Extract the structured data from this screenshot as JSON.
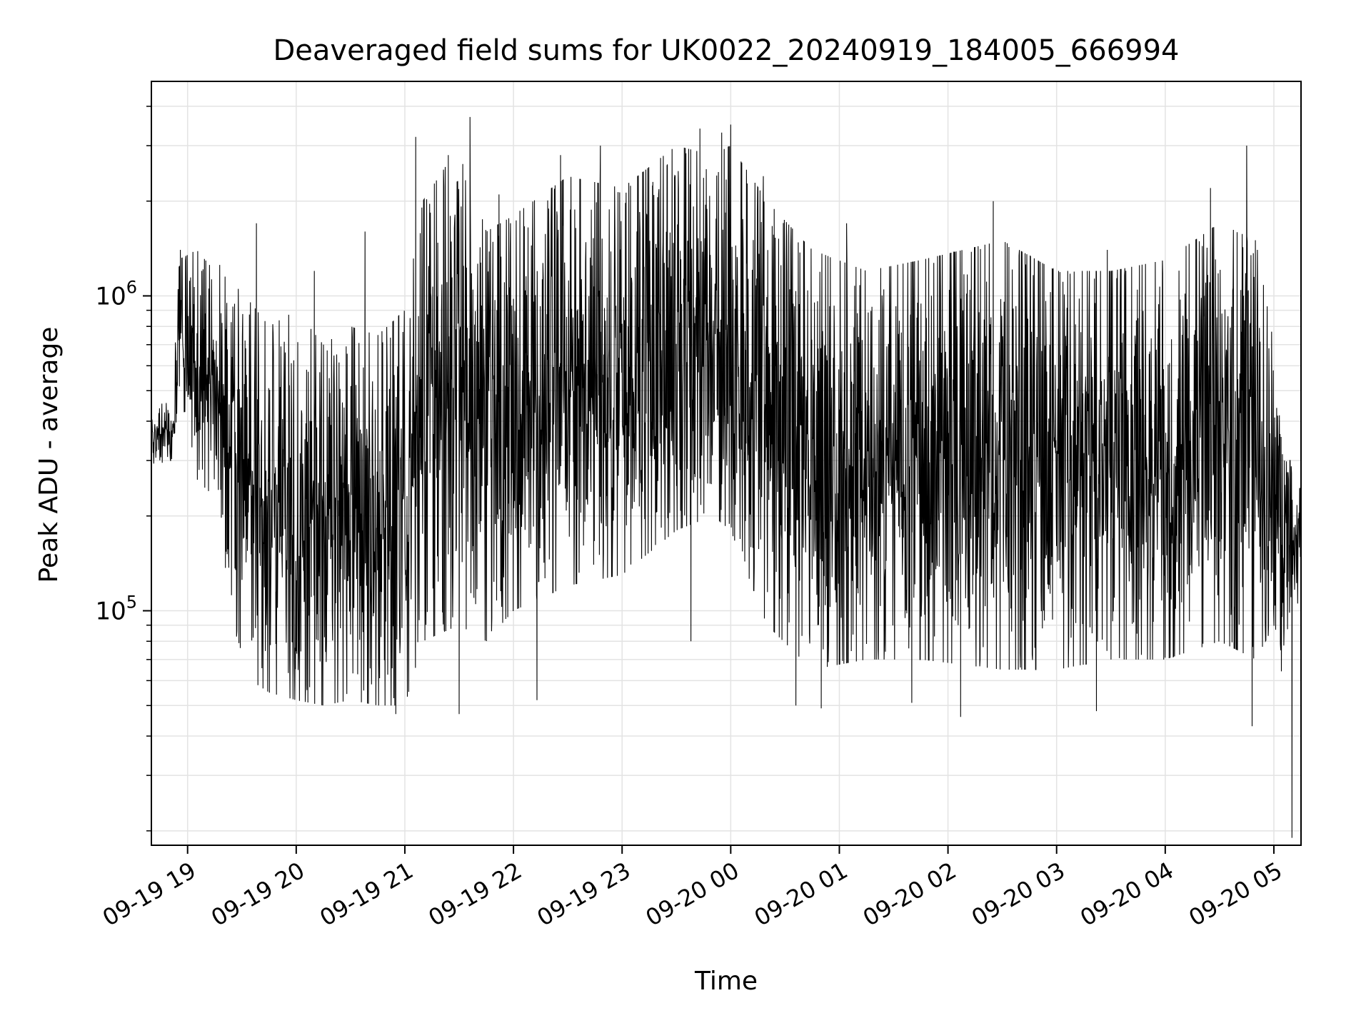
{
  "chart_data": {
    "type": "line",
    "title": "Deaveraged field sums for UK0022_20240919_184005_666994",
    "xlabel": "Time",
    "ylabel": "Peak ADU - average",
    "yscale": "log",
    "ylim": [
      18000,
      4800000
    ],
    "xlim": [
      "2024-09-19 18:40",
      "2024-09-20 05:15"
    ],
    "grid": true,
    "line_color": "#000000",
    "grid_color": "#e3e3e3",
    "x_ticks": [
      {
        "t": "2024-09-19 19:00",
        "label": "09-19 19"
      },
      {
        "t": "2024-09-19 20:00",
        "label": "09-19 20"
      },
      {
        "t": "2024-09-19 21:00",
        "label": "09-19 21"
      },
      {
        "t": "2024-09-19 22:00",
        "label": "09-19 22"
      },
      {
        "t": "2024-09-19 23:00",
        "label": "09-19 23"
      },
      {
        "t": "2024-09-20 00:00",
        "label": "09-20 00"
      },
      {
        "t": "2024-09-20 01:00",
        "label": "09-20 01"
      },
      {
        "t": "2024-09-20 02:00",
        "label": "09-20 02"
      },
      {
        "t": "2024-09-20 03:00",
        "label": "09-20 03"
      },
      {
        "t": "2024-09-20 04:00",
        "label": "09-20 04"
      },
      {
        "t": "2024-09-20 05:00",
        "label": "09-20 05"
      }
    ],
    "y_major_ticks": [
      {
        "value": 100000,
        "base": "10",
        "exp": "5"
      },
      {
        "value": 1000000,
        "base": "10",
        "exp": "6"
      }
    ],
    "y_minor_ticks": [
      20000,
      30000,
      40000,
      50000,
      60000,
      70000,
      80000,
      90000,
      200000,
      300000,
      400000,
      500000,
      600000,
      700000,
      800000,
      900000,
      2000000,
      3000000,
      4000000
    ],
    "series": [
      {
        "envelope": [
          {
            "t": "2024-09-19 18:40",
            "low": 290000,
            "high": 450000
          },
          {
            "t": "2024-09-19 18:52",
            "low": 300000,
            "high": 460000
          },
          {
            "t": "2024-09-19 18:55",
            "low": 500000,
            "high": 1300000
          },
          {
            "t": "2024-09-19 19:05",
            "low": 260000,
            "high": 1400000
          },
          {
            "t": "2024-09-19 19:15",
            "low": 230000,
            "high": 1200000
          },
          {
            "t": "2024-09-19 19:20",
            "low": 150000,
            "high": 1500000
          },
          {
            "t": "2024-09-19 19:25",
            "low": 90000,
            "high": 1100000
          },
          {
            "t": "2024-09-19 19:35",
            "low": 60000,
            "high": 950000
          },
          {
            "t": "2024-09-19 19:45",
            "low": 55000,
            "high": 800000
          },
          {
            "t": "2024-09-19 20:00",
            "low": 52000,
            "high": 900000
          },
          {
            "t": "2024-09-19 20:15",
            "low": 50000,
            "high": 700000
          },
          {
            "t": "2024-09-19 20:30",
            "low": 52000,
            "high": 800000
          },
          {
            "t": "2024-09-19 20:45",
            "low": 50000,
            "high": 750000
          },
          {
            "t": "2024-09-19 21:00",
            "low": 50000,
            "high": 900000
          },
          {
            "t": "2024-09-19 21:10",
            "low": 80000,
            "high": 2000000
          },
          {
            "t": "2024-09-19 21:30",
            "low": 90000,
            "high": 3000000
          },
          {
            "t": "2024-09-19 21:45",
            "low": 80000,
            "high": 1600000
          },
          {
            "t": "2024-09-19 22:00",
            "low": 100000,
            "high": 1800000
          },
          {
            "t": "2024-09-19 22:30",
            "low": 120000,
            "high": 2400000
          },
          {
            "t": "2024-09-19 23:00",
            "low": 130000,
            "high": 2200000
          },
          {
            "t": "2024-09-19 23:30",
            "low": 180000,
            "high": 3000000
          },
          {
            "t": "2024-09-19 23:50",
            "low": 200000,
            "high": 2800000
          },
          {
            "t": "2024-09-20 00:00",
            "low": 180000,
            "high": 3000000
          },
          {
            "t": "2024-09-20 00:20",
            "low": 90000,
            "high": 2000000
          },
          {
            "t": "2024-09-20 00:45",
            "low": 65000,
            "high": 1400000
          },
          {
            "t": "2024-09-20 01:15",
            "low": 70000,
            "high": 1200000
          },
          {
            "t": "2024-09-20 01:45",
            "low": 70000,
            "high": 1300000
          },
          {
            "t": "2024-09-20 02:30",
            "low": 65000,
            "high": 1500000
          },
          {
            "t": "2024-09-20 03:00",
            "low": 65000,
            "high": 1200000
          },
          {
            "t": "2024-09-20 03:30",
            "low": 70000,
            "high": 1200000
          },
          {
            "t": "2024-09-20 04:00",
            "low": 70000,
            "high": 1300000
          },
          {
            "t": "2024-09-20 04:30",
            "low": 80000,
            "high": 1700000
          },
          {
            "t": "2024-09-20 04:50",
            "low": 70000,
            "high": 1500000
          },
          {
            "t": "2024-09-20 05:00",
            "low": 90000,
            "high": 700000
          },
          {
            "t": "2024-09-20 05:05",
            "low": 60000,
            "high": 300000
          },
          {
            "t": "2024-09-20 05:15",
            "low": 120000,
            "high": 300000
          }
        ],
        "spikes": [
          {
            "t": "2024-09-19 18:56",
            "value": 1400000
          },
          {
            "t": "2024-09-19 19:38",
            "value": 1700000
          },
          {
            "t": "2024-09-19 20:10",
            "value": 1200000
          },
          {
            "t": "2024-09-19 20:38",
            "value": 1600000
          },
          {
            "t": "2024-09-19 20:55",
            "value": 47000
          },
          {
            "t": "2024-09-19 21:06",
            "value": 3200000
          },
          {
            "t": "2024-09-19 21:24",
            "value": 2800000
          },
          {
            "t": "2024-09-19 21:30",
            "value": 47000
          },
          {
            "t": "2024-09-19 21:36",
            "value": 3700000
          },
          {
            "t": "2024-09-19 21:52",
            "value": 2100000
          },
          {
            "t": "2024-09-19 22:13",
            "value": 52000
          },
          {
            "t": "2024-09-19 22:26",
            "value": 2800000
          },
          {
            "t": "2024-09-19 22:48",
            "value": 3000000
          },
          {
            "t": "2024-09-19 23:17",
            "value": 2300000
          },
          {
            "t": "2024-09-19 23:38",
            "value": 80000
          },
          {
            "t": "2024-09-19 23:43",
            "value": 3400000
          },
          {
            "t": "2024-09-19 23:55",
            "value": 3300000
          },
          {
            "t": "2024-09-20 00:00",
            "value": 3500000
          },
          {
            "t": "2024-09-20 00:18",
            "value": 2400000
          },
          {
            "t": "2024-09-20 00:36",
            "value": 50000
          },
          {
            "t": "2024-09-20 00:50",
            "value": 49000
          },
          {
            "t": "2024-09-20 01:04",
            "value": 1700000
          },
          {
            "t": "2024-09-20 01:40",
            "value": 51000
          },
          {
            "t": "2024-09-20 02:07",
            "value": 46000
          },
          {
            "t": "2024-09-20 02:25",
            "value": 2000000
          },
          {
            "t": "2024-09-20 03:22",
            "value": 48000
          },
          {
            "t": "2024-09-20 03:28",
            "value": 1400000
          },
          {
            "t": "2024-09-20 04:25",
            "value": 2200000
          },
          {
            "t": "2024-09-20 04:45",
            "value": 3000000
          },
          {
            "t": "2024-09-20 04:48",
            "value": 43000
          },
          {
            "t": "2024-09-20 05:10",
            "value": 19000
          }
        ]
      }
    ]
  }
}
